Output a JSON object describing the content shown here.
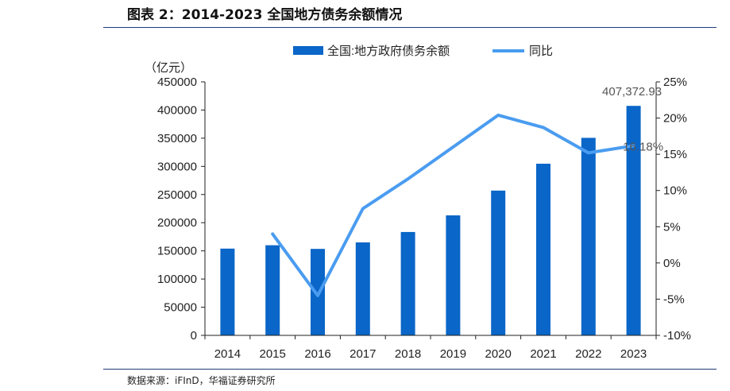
{
  "figure": {
    "title": "图表 2：2014-2023 全国地方债务余额情况",
    "source": "数据来源：iFInD，华福证券研究所"
  },
  "chart_data": {
    "type": "bar",
    "categories": [
      "2014",
      "2015",
      "2016",
      "2017",
      "2018",
      "2019",
      "2020",
      "2021",
      "2022",
      "2023"
    ],
    "series": [
      {
        "name": "全国:地方政府债务余额",
        "type": "bar",
        "axis": "left",
        "color": "#0a66c8",
        "values": [
          154000,
          160000,
          153500,
          165000,
          183500,
          213000,
          257000,
          304700,
          350600,
          407372.93
        ]
      },
      {
        "name": "同比",
        "type": "line",
        "axis": "right",
        "color": "#4a9cf0",
        "values": [
          null,
          4.0,
          -4.5,
          7.5,
          11.6,
          16.0,
          20.4,
          18.7,
          15.2,
          16.18
        ]
      }
    ],
    "ylabel": "（亿元）",
    "ylim": [
      0,
      450000
    ],
    "yticks": [
      "0",
      "50000",
      "100000",
      "150000",
      "200000",
      "250000",
      "300000",
      "350000",
      "400000",
      "450000"
    ],
    "y2lim": [
      -10,
      25
    ],
    "y2ticks": [
      "-10%",
      "-5%",
      "0%",
      "5%",
      "10%",
      "15%",
      "20%",
      "25%"
    ],
    "annotations": [
      "407,372.93",
      "16.18%"
    ],
    "legend": "top",
    "grid": false
  }
}
